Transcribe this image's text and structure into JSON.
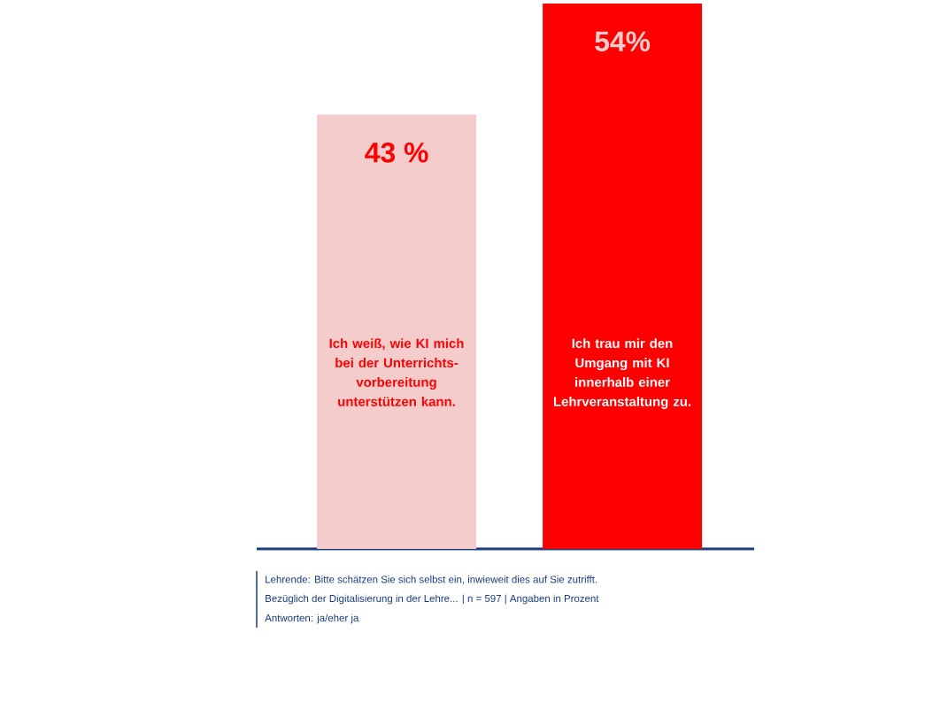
{
  "chart_data": {
    "type": "bar",
    "categories": [
      "Ich weiß, wie KI mich bei der Unterrichts-vorbereitung unterstützen kann.",
      "Ich trau mir den Umgang mit KI innerhalb einer Lehrveranstaltung zu."
    ],
    "values": [
      43,
      54
    ],
    "colors": [
      "#f4cccc",
      "#ff0000"
    ],
    "value_labels": [
      "43 %",
      "54%"
    ],
    "annotations": [
      "Lehrende: Bitte schätzen Sie sich selbst ein, inwieweit dies auf Sie zutrifft.",
      "Bezüglich der Digitalisierung in der Lehre... | n = 597 | Angaben in  Prozent",
      "Antworten: ja/eher ja"
    ]
  }
}
